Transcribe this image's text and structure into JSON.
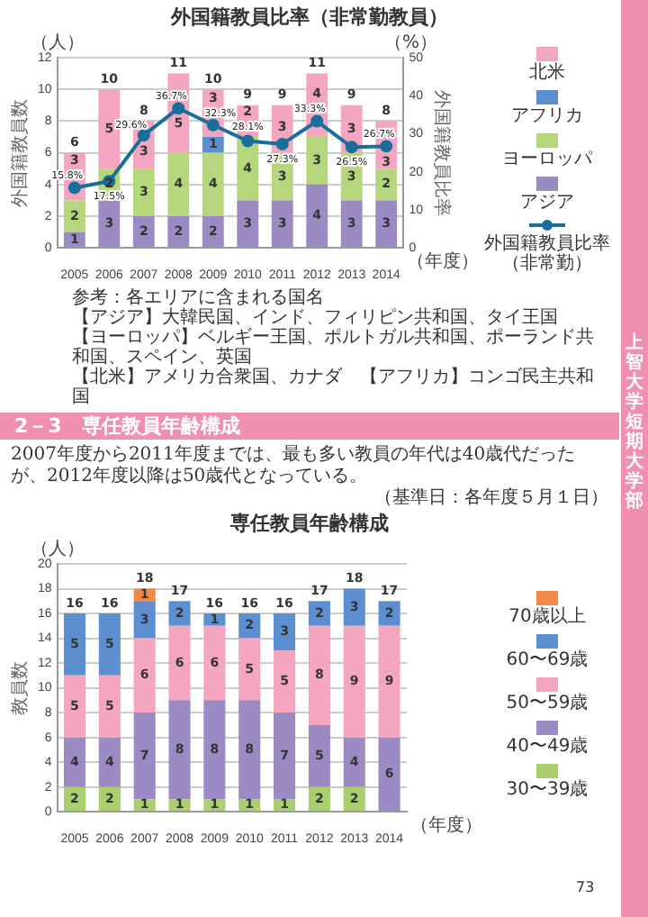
{
  "chart_data": [
    {
      "type": "bar",
      "title": "外国籍教員比率（非常勤教員）",
      "categories": [
        "2005",
        "2006",
        "2007",
        "2008",
        "2009",
        "2010",
        "2011",
        "2012",
        "2013",
        "2014"
      ],
      "stacked": true,
      "ylabel": "外国籍教員数",
      "y2label": "外国籍教員比率",
      "ylim": [
        0,
        12
      ],
      "yticks": [
        0,
        2,
        4,
        6,
        8,
        10,
        12
      ],
      "y2lim": [
        0,
        50
      ],
      "y2ticks": [
        0,
        10,
        20,
        30,
        40,
        50
      ],
      "grid": "y",
      "legend": "right",
      "marker": "circle",
      "data_labels": true,
      "totals": [
        "6",
        "10",
        "8",
        "11",
        "10",
        "9",
        "9",
        "11",
        "9",
        "8"
      ],
      "series": [
        {
          "name": "アジア",
          "color": "#9b8ac4",
          "values": [
            1,
            3,
            2,
            2,
            2,
            3,
            3,
            4,
            3,
            3
          ]
        },
        {
          "name": "ヨーロッパ",
          "color": "#b5d67c",
          "values": [
            2,
            2,
            3,
            4,
            4,
            4,
            3,
            3,
            3,
            2
          ]
        },
        {
          "name": "アフリカ",
          "color": "#5b8fd0",
          "values": [
            null,
            null,
            null,
            null,
            1,
            null,
            null,
            null,
            null,
            null
          ]
        },
        {
          "name": "北米",
          "color": "#f4a6c0",
          "values": [
            3,
            5,
            3,
            5,
            3,
            2,
            3,
            4,
            3,
            3
          ]
        },
        {
          "name": "外国籍教員比率（非常勤）",
          "type": "line",
          "axis": "y2",
          "color": "#1a6e9a",
          "values": [
            15.8,
            17.5,
            29.6,
            36.7,
            32.3,
            28.1,
            27.3,
            33.3,
            26.5,
            26.7
          ],
          "value_labels": [
            "15.8%",
            "17.5%",
            "29.6%",
            "36.7%",
            "32.3%",
            "28.1%",
            "27.3%",
            "33.3%",
            "26.5%",
            "26.7%"
          ]
        }
      ],
      "annotations": [
        "（人）",
        "（%）",
        "（年度）",
        "参考：各エリアに含まれる国名",
        "【アジア】大韓民国、インド、フィリピン共和国、タイ王国",
        "【ヨーロッパ】ベルギー王国、ポルトガル共和国、ポーランド共和国、スペイン、英国",
        "【北米】アメリカ合衆国、カナダ　【アフリカ】コンゴ民主共和国"
      ]
    },
    {
      "type": "bar",
      "title": "専任教員年齢構成",
      "categories": [
        "2005",
        "2006",
        "2007",
        "2008",
        "2009",
        "2010",
        "2011",
        "2012",
        "2013",
        "2014"
      ],
      "stacked": true,
      "ylabel": "教員数",
      "ylim": [
        0,
        20
      ],
      "yticks": [
        0,
        2,
        4,
        6,
        8,
        10,
        12,
        14,
        16,
        18,
        20
      ],
      "grid": "y",
      "legend": "right",
      "data_labels": true,
      "totals": [
        "16",
        "16",
        "18",
        "17",
        "16",
        "16",
        "16",
        "17",
        "18",
        "17"
      ],
      "series": [
        {
          "name": "30〜39歳",
          "color": "#a9cf6e",
          "values": [
            2,
            2,
            1,
            1,
            1,
            1,
            1,
            2,
            2,
            null
          ]
        },
        {
          "name": "40〜49歳",
          "color": "#9b8ac4",
          "values": [
            4,
            4,
            7,
            8,
            8,
            8,
            7,
            5,
            4,
            6
          ]
        },
        {
          "name": "50〜59歳",
          "color": "#f4a6c0",
          "values": [
            5,
            5,
            6,
            6,
            6,
            5,
            5,
            8,
            9,
            9
          ]
        },
        {
          "name": "60〜69歳",
          "color": "#5b8fd0",
          "values": [
            5,
            5,
            3,
            2,
            1,
            2,
            3,
            2,
            3,
            2
          ]
        },
        {
          "name": "70歳以上",
          "color": "#f0884a",
          "values": [
            null,
            null,
            1,
            null,
            null,
            null,
            null,
            null,
            null,
            null
          ]
        }
      ],
      "annotations": [
        "（人）",
        "（年度）",
        "2－3　専任教員年齢構成",
        "2007年度から2011年度までは、最も多い教員の年代は40歳代だったが、2012年度以降は50歳代となっている。",
        "（基準日：各年度５月１日）",
        "73",
        "上智大学短期大学部"
      ]
    }
  ]
}
